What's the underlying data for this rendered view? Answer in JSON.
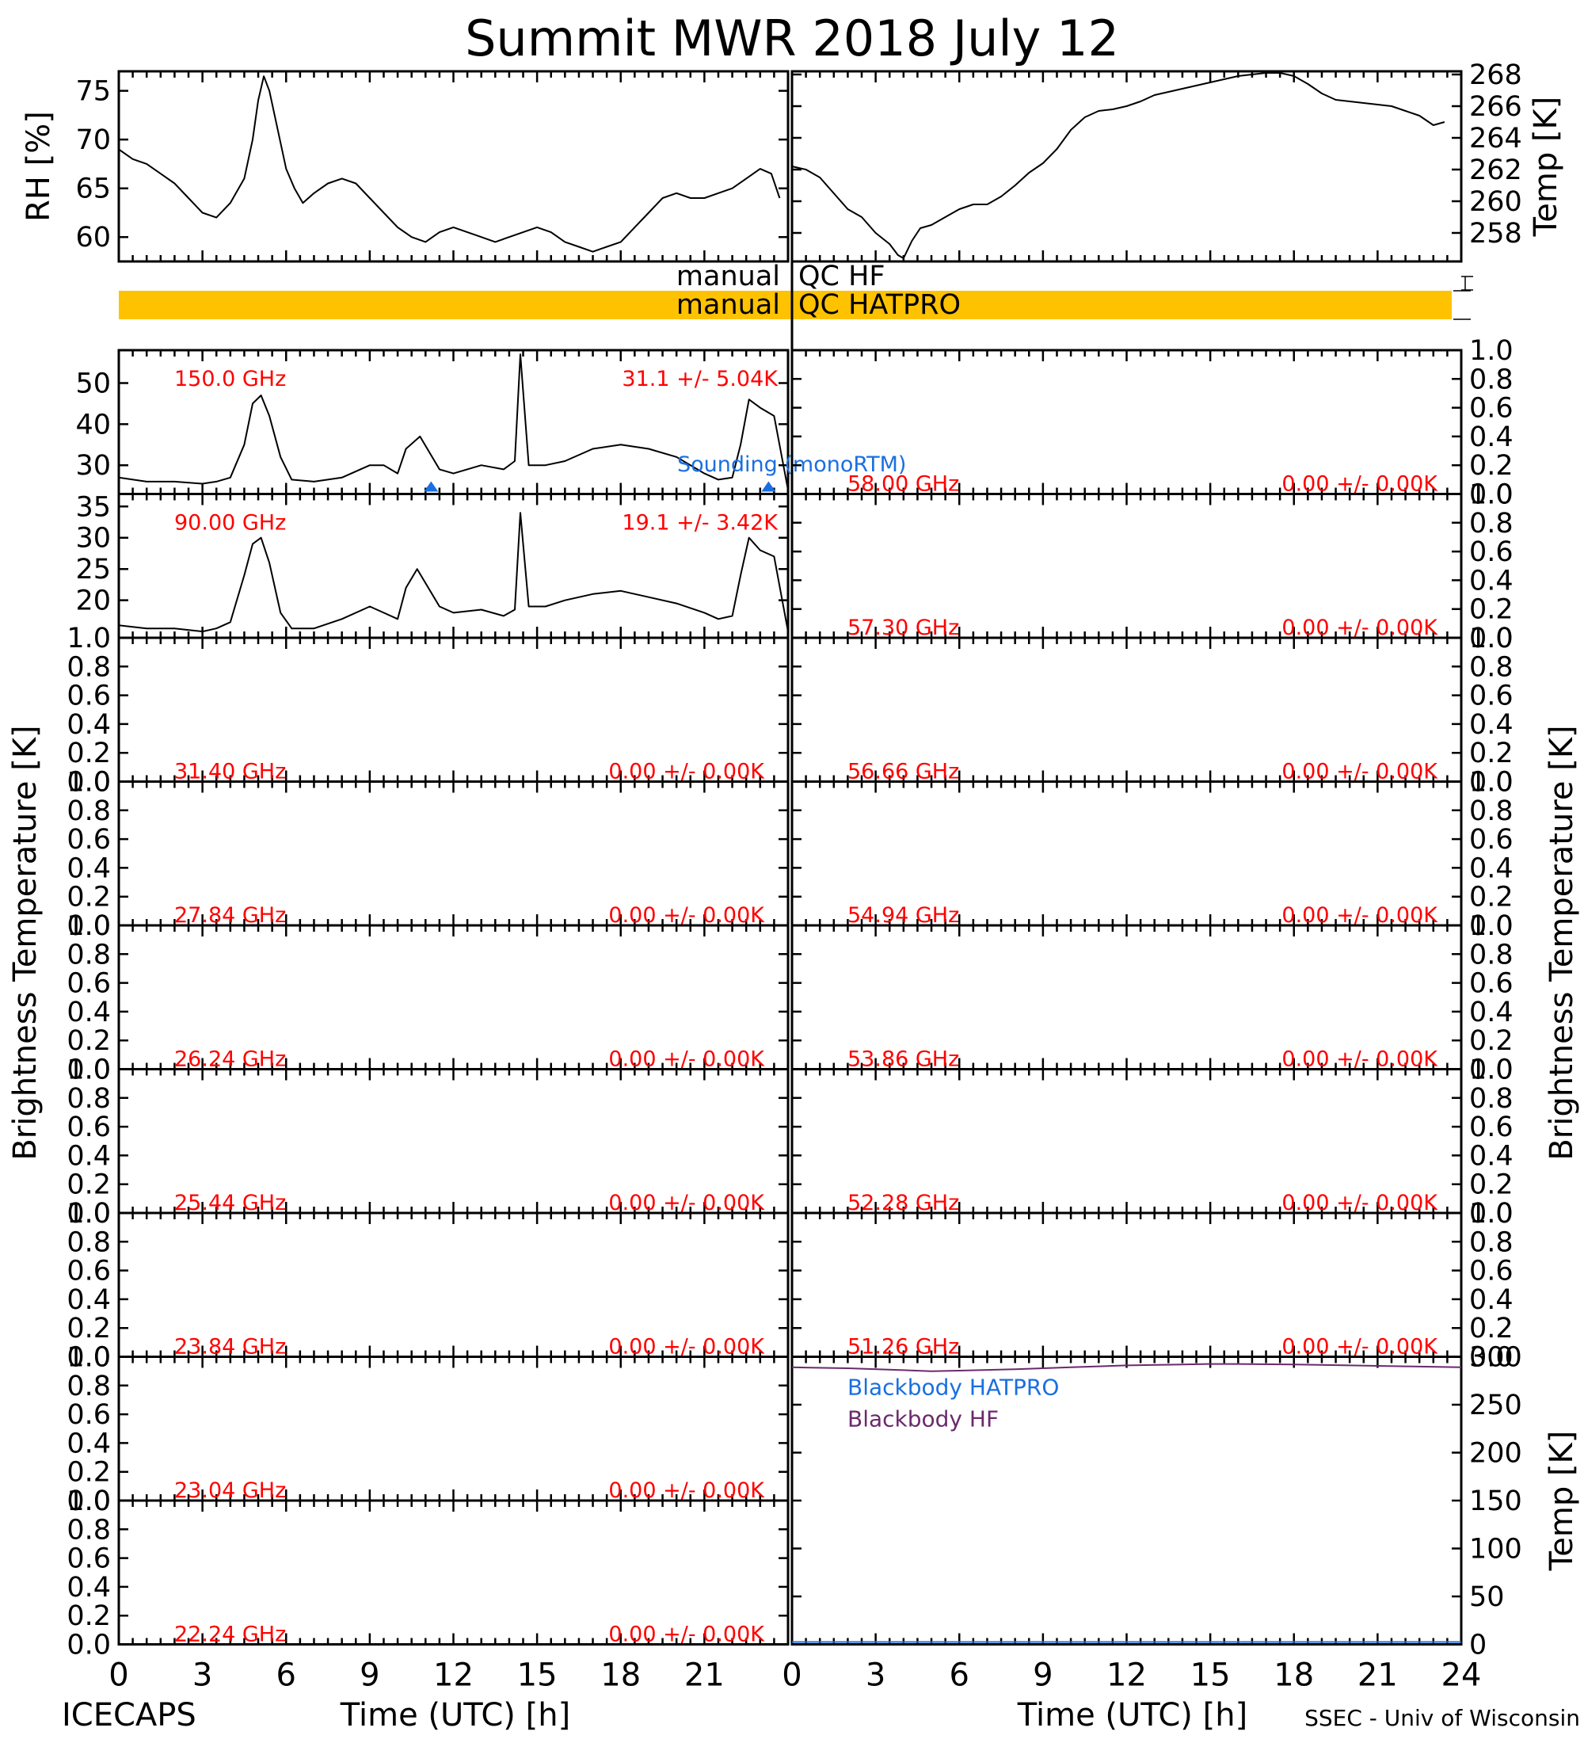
{
  "title": "Summit MWR 2018 July 12",
  "left_footer": "ICECAPS",
  "right_footer": "SSEC - Univ of Wisconsin",
  "x_axis_label": "Time (UTC) [h]",
  "bt_axis_label": "Brightness Temperature [K]",
  "colors": {
    "channel_label": "#ff0000",
    "hatpro": "#1a6fe0",
    "hf": "#6b2a6b",
    "qc_bar": "#ffc200",
    "trace": "#000000"
  },
  "chart_data": [
    {
      "type": "line",
      "id": "rh",
      "ylabel": "RH [%]",
      "xlim": [
        0,
        24
      ],
      "ylim": [
        57.5,
        77
      ],
      "yticks": [
        60,
        65,
        70,
        75
      ],
      "x": [
        0,
        0.5,
        1,
        1.5,
        2,
        2.5,
        3,
        3.5,
        4,
        4.5,
        4.8,
        5,
        5.2,
        5.4,
        5.7,
        6,
        6.3,
        6.6,
        7,
        7.5,
        8,
        8.5,
        9,
        9.5,
        10,
        10.5,
        11,
        11.5,
        12,
        12.5,
        13,
        13.5,
        14,
        14.5,
        15,
        15.5,
        16,
        16.5,
        17,
        17.5,
        18,
        18.5,
        19,
        19.5,
        20,
        20.5,
        21,
        21.5,
        22,
        22.5,
        23,
        23.4,
        23.7
      ],
      "y": [
        69,
        68,
        67.5,
        66.5,
        65.5,
        64,
        62.5,
        62,
        63.5,
        66,
        70,
        74,
        76.5,
        75,
        71,
        67,
        65,
        63.5,
        64.5,
        65.5,
        66,
        65.5,
        64,
        62.5,
        61,
        60,
        59.5,
        60.5,
        61,
        60.5,
        60,
        59.5,
        60,
        60.5,
        61,
        60.5,
        59.5,
        59,
        58.5,
        59,
        59.5,
        61,
        62.5,
        64,
        64.5,
        64,
        64,
        64.5,
        65,
        66,
        67,
        66.5,
        64
      ]
    },
    {
      "type": "line",
      "id": "temp",
      "ylabel": "Temp [K]",
      "xlim": [
        0,
        24
      ],
      "ylim": [
        256.2,
        268.2
      ],
      "yticks": [
        258,
        260,
        262,
        264,
        266,
        268
      ],
      "x": [
        0,
        0.5,
        1,
        1.5,
        2,
        2.5,
        3,
        3.5,
        3.8,
        4,
        4.3,
        4.6,
        5,
        5.5,
        6,
        6.5,
        7,
        7.5,
        8,
        8.5,
        9,
        9.5,
        10,
        10.5,
        11,
        11.5,
        12,
        12.5,
        13,
        13.5,
        14,
        14.5,
        15,
        15.5,
        16,
        16.5,
        17,
        17.5,
        18,
        18.5,
        19,
        19.5,
        20,
        20.5,
        21,
        21.5,
        22,
        22.5,
        23,
        23.4
      ],
      "y": [
        262.2,
        262,
        261.5,
        260.5,
        259.5,
        259,
        258,
        257.3,
        256.6,
        256.4,
        257.5,
        258.3,
        258.5,
        259,
        259.5,
        259.8,
        259.8,
        260.3,
        261,
        261.8,
        262.4,
        263.3,
        264.5,
        265.3,
        265.7,
        265.8,
        266,
        266.3,
        266.7,
        266.9,
        267.1,
        267.3,
        267.5,
        267.7,
        267.9,
        268,
        268.1,
        268.1,
        267.9,
        267.4,
        266.8,
        266.4,
        266.3,
        266.2,
        266.1,
        266,
        265.7,
        265.4,
        264.8,
        265
      ],
      "yaxis_side": "right"
    },
    {
      "type": "line",
      "id": "ch150",
      "frequency_label": "150.0 GHz",
      "stats_label": "31.1 +/-  5.04K",
      "xlim": [
        0,
        24
      ],
      "ylim": [
        23,
        58
      ],
      "yticks": [
        30,
        40,
        50
      ],
      "x": [
        0,
        1,
        2,
        3,
        3.5,
        4,
        4.5,
        4.8,
        5.1,
        5.4,
        5.8,
        6.2,
        7,
        8,
        9,
        9.5,
        10,
        10.3,
        10.8,
        11.5,
        12,
        13,
        13.8,
        14.2,
        14.4,
        14.7,
        15.3,
        16,
        17,
        18,
        19,
        20,
        21,
        21.5,
        22,
        22.3,
        22.6,
        23,
        23.5,
        24
      ],
      "y": [
        27,
        26,
        26,
        25.5,
        26,
        27,
        35,
        45,
        47,
        42,
        32,
        26.5,
        26,
        27,
        30,
        30,
        28,
        34,
        37,
        29,
        28,
        30,
        29,
        31,
        57,
        30,
        30,
        31,
        34,
        35,
        34,
        32,
        28,
        26.5,
        27,
        35,
        46,
        44,
        42,
        24
      ],
      "markers_x": [
        11.2,
        23.3
      ],
      "marker_label": "Sounding (monoRTM)"
    },
    {
      "type": "line",
      "id": "ch90",
      "frequency_label": "90.00 GHz",
      "stats_label": "19.1 +/-  3.42K",
      "xlim": [
        0,
        24
      ],
      "ylim": [
        14,
        37
      ],
      "yticks": [
        20,
        25,
        30,
        35
      ],
      "x": [
        0,
        1,
        2,
        3,
        3.5,
        4,
        4.5,
        4.8,
        5.1,
        5.4,
        5.8,
        6.2,
        7,
        8,
        9,
        9.5,
        10,
        10.3,
        10.7,
        11.5,
        12,
        13,
        13.8,
        14.2,
        14.4,
        14.7,
        15.3,
        16,
        17,
        18,
        19,
        20,
        21,
        21.5,
        22,
        22.3,
        22.6,
        23,
        23.5,
        24
      ],
      "y": [
        16,
        15.5,
        15.5,
        15,
        15.5,
        16.5,
        24,
        29,
        30,
        26,
        18,
        15.5,
        15.5,
        17,
        19,
        18,
        17,
        22,
        25,
        19,
        18,
        18.5,
        17.5,
        18.5,
        34,
        19,
        19,
        20,
        21,
        21.5,
        20.5,
        19.5,
        18,
        17,
        17.5,
        24,
        30,
        28,
        27,
        15
      ],
      "yaxis_side": "left"
    },
    {
      "type": "line",
      "id": "ch58",
      "frequency_label": "58.00 GHz",
      "stats_label": "0.00 +/-  0.00K",
      "xlim": [
        0,
        24
      ],
      "ylim": [
        0,
        1
      ],
      "x": [],
      "y": []
    },
    {
      "type": "line",
      "id": "ch573",
      "frequency_label": "57.30 GHz",
      "stats_label": "0.00 +/-  0.00K",
      "xlim": [
        0,
        24
      ],
      "ylim": [
        0,
        1
      ],
      "x": [],
      "y": []
    },
    {
      "type": "line",
      "id": "ch314",
      "frequency_label": "31.40 GHz",
      "stats_label": "0.00 +/-  0.00K",
      "xlim": [
        0,
        24
      ],
      "ylim": [
        0,
        1
      ],
      "x": [],
      "y": []
    },
    {
      "type": "line",
      "id": "ch5666",
      "frequency_label": "56.66 GHz",
      "stats_label": "0.00 +/-  0.00K",
      "xlim": [
        0,
        24
      ],
      "ylim": [
        0,
        1
      ],
      "x": [],
      "y": []
    },
    {
      "type": "line",
      "id": "ch2784",
      "frequency_label": "27.84 GHz",
      "stats_label": "0.00 +/-  0.00K",
      "xlim": [
        0,
        24
      ],
      "ylim": [
        0,
        1
      ],
      "x": [],
      "y": []
    },
    {
      "type": "line",
      "id": "ch5494",
      "frequency_label": "54.94 GHz",
      "stats_label": "0.00 +/-  0.00K",
      "xlim": [
        0,
        24
      ],
      "ylim": [
        0,
        1
      ],
      "x": [],
      "y": []
    },
    {
      "type": "line",
      "id": "ch2624",
      "frequency_label": "26.24 GHz",
      "stats_label": "0.00 +/-  0.00K",
      "xlim": [
        0,
        24
      ],
      "ylim": [
        0,
        1
      ],
      "x": [],
      "y": []
    },
    {
      "type": "line",
      "id": "ch5386",
      "frequency_label": "53.86 GHz",
      "stats_label": "0.00 +/-  0.00K",
      "xlim": [
        0,
        24
      ],
      "ylim": [
        0,
        1
      ],
      "x": [],
      "y": []
    },
    {
      "type": "line",
      "id": "ch2544",
      "frequency_label": "25.44 GHz",
      "stats_label": "0.00 +/-  0.00K",
      "xlim": [
        0,
        24
      ],
      "ylim": [
        0,
        1
      ],
      "x": [],
      "y": []
    },
    {
      "type": "line",
      "id": "ch5228",
      "frequency_label": "52.28 GHz",
      "stats_label": "0.00 +/-  0.00K",
      "xlim": [
        0,
        24
      ],
      "ylim": [
        0,
        1
      ],
      "x": [],
      "y": []
    },
    {
      "type": "line",
      "id": "ch2384",
      "frequency_label": "23.84 GHz",
      "stats_label": "0.00 +/-  0.00K",
      "xlim": [
        0,
        24
      ],
      "ylim": [
        0,
        1
      ],
      "x": [],
      "y": []
    },
    {
      "type": "line",
      "id": "ch5126",
      "frequency_label": "51.26 GHz",
      "stats_label": "0.00 +/-  0.00K",
      "xlim": [
        0,
        24
      ],
      "ylim": [
        0,
        1
      ],
      "x": [],
      "y": []
    },
    {
      "type": "line",
      "id": "ch2304",
      "frequency_label": "23.04 GHz",
      "stats_label": "0.00 +/-  0.00K",
      "xlim": [
        0,
        24
      ],
      "ylim": [
        0,
        1
      ],
      "x": [],
      "y": []
    },
    {
      "type": "line",
      "id": "ch2224",
      "frequency_label": "22.24 GHz",
      "stats_label": "0.00 +/-  0.00K",
      "xlim": [
        0,
        24
      ],
      "ylim": [
        0,
        1
      ],
      "x": [],
      "y": []
    },
    {
      "type": "line",
      "id": "blackbody",
      "ylabel": "Temp [K]",
      "xlim": [
        0,
        24
      ],
      "ylim": [
        0,
        300
      ],
      "yticks": [
        0,
        50,
        100,
        150,
        200,
        250,
        300
      ],
      "yaxis_side": "right",
      "series": [
        {
          "name": "Blackbody HATPRO",
          "x": [],
          "y": []
        },
        {
          "name": "Blackbody HF",
          "x": [
            0,
            2,
            4,
            5,
            6,
            8,
            10,
            12,
            14,
            15,
            16,
            18,
            20,
            22,
            24
          ],
          "y": [
            289,
            288,
            286,
            285,
            285.5,
            287,
            289,
            291,
            292,
            292.5,
            292.5,
            292,
            291,
            290,
            289
          ]
        }
      ]
    }
  ],
  "qc": {
    "hf": {
      "label": "manual",
      "name": "QC HF"
    },
    "hatpro": {
      "label": "manual",
      "name": "QC HATPRO"
    }
  },
  "x_ticks_left": [
    "0",
    "3",
    "6",
    "9",
    "12",
    "15",
    "18",
    "21"
  ],
  "x_ticks_right": [
    "0",
    "3",
    "6",
    "9",
    "12",
    "15",
    "18",
    "21",
    "24"
  ],
  "bt_ticks": [
    "0.0",
    "0.2",
    "0.4",
    "0.6",
    "0.8",
    "1.0"
  ]
}
